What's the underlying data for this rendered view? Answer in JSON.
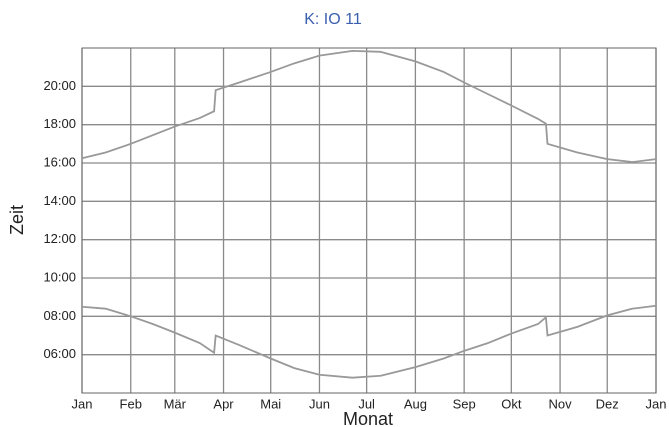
{
  "chart_data": {
    "type": "line",
    "title": "K: IO 11",
    "xlabel": "Monat",
    "ylabel": "Zeit",
    "x": [
      0,
      15,
      31,
      45,
      59,
      75,
      84,
      85,
      100,
      120,
      135,
      151,
      172,
      190,
      212,
      230,
      243,
      258,
      273,
      290,
      295,
      296,
      315,
      334,
      350,
      365
    ],
    "series": [
      {
        "color": "#999999",
        "values": [
          16.25,
          16.55,
          17.0,
          17.45,
          17.9,
          18.35,
          18.7,
          19.8,
          20.2,
          20.75,
          21.2,
          21.6,
          21.85,
          21.8,
          21.3,
          20.75,
          20.2,
          19.6,
          19.0,
          18.3,
          18.05,
          17.0,
          16.55,
          16.2,
          16.05,
          16.2
        ]
      },
      {
        "color": "#999999",
        "values": [
          8.5,
          8.4,
          8.0,
          7.6,
          7.15,
          6.6,
          6.1,
          7.0,
          6.5,
          5.8,
          5.3,
          4.95,
          4.8,
          4.9,
          5.35,
          5.8,
          6.2,
          6.6,
          7.1,
          7.6,
          7.95,
          7.0,
          7.45,
          8.05,
          8.4,
          8.55
        ]
      }
    ],
    "xlim": [
      0,
      365
    ],
    "xticks": [
      {
        "value": 0,
        "label": "Jan"
      },
      {
        "value": 31,
        "label": "Feb"
      },
      {
        "value": 59,
        "label": "Mär"
      },
      {
        "value": 90,
        "label": "Apr"
      },
      {
        "value": 120,
        "label": "Mai"
      },
      {
        "value": 151,
        "label": "Jun"
      },
      {
        "value": 181,
        "label": "Jul"
      },
      {
        "value": 212,
        "label": "Aug"
      },
      {
        "value": 243,
        "label": "Sep"
      },
      {
        "value": 273,
        "label": "Okt"
      },
      {
        "value": 304,
        "label": "Nov"
      },
      {
        "value": 334,
        "label": "Dez"
      },
      {
        "value": 365,
        "label": "Jan"
      }
    ],
    "ylim": [
      4,
      22
    ],
    "yticks": [
      {
        "value": 6,
        "label": "06:00"
      },
      {
        "value": 8,
        "label": "08:00"
      },
      {
        "value": 10,
        "label": "10:00"
      },
      {
        "value": 12,
        "label": "12:00"
      },
      {
        "value": 14,
        "label": "14:00"
      },
      {
        "value": 16,
        "label": "16:00"
      },
      {
        "value": 18,
        "label": "18:00"
      },
      {
        "value": 20,
        "label": "20:00"
      }
    ],
    "grid": true
  }
}
